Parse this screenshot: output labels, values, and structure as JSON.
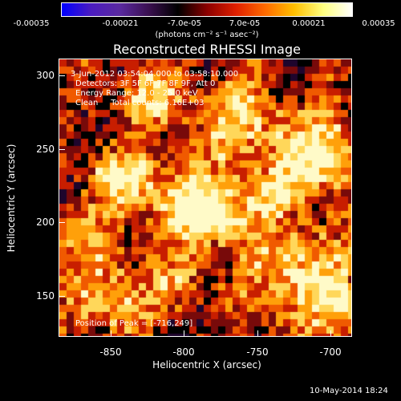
{
  "colorbar": {
    "ticks": [
      "-0.00035",
      "-0.00021",
      "-7.0e-05",
      "7.0e-05",
      "0.00021",
      "0.00035"
    ],
    "unit_label": "(photons cm⁻² s⁻¹ asec⁻²)",
    "colors": [
      "#0000ff",
      "#4b1cc0",
      "#5a2aa0",
      "#3a1050",
      "#000000",
      "#8b0000",
      "#e02000",
      "#ff6a00",
      "#ffc000",
      "#ffff80",
      "#ffffff"
    ]
  },
  "title": "Reconstructed RHESSI Image",
  "info": {
    "time_range": "3-Jun-2012 03:54:04.000 to 03:58:10.000",
    "detectors": "Detectors: 3F 5F 6F 7F 8F 9F, Att 0",
    "energy": "Energy Range: 12.0 - 25.0 keV",
    "clean": "Clean     Total counts: 6.16E+03",
    "peak": "Position of Peak = [-716,249]"
  },
  "axes": {
    "x_title": "Heliocentric X (arcsec)",
    "y_title": "Heliocentric Y (arcsec)",
    "x_ticks": [
      "-850",
      "-800",
      "-750",
      "-700"
    ],
    "y_ticks": [
      "300",
      "250",
      "200",
      "150"
    ]
  },
  "timestamp": "10-May-2014 18:24"
}
